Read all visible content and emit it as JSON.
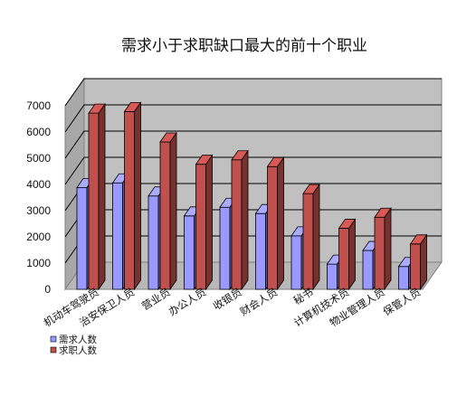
{
  "chart_data": {
    "type": "bar",
    "title": "需求小于求职缺口最大的前十个职业",
    "categories": [
      "机动车驾驶员",
      "治安保卫人员",
      "营业员",
      "办公人员",
      "收银员",
      "财会人员",
      "秘书",
      "计算机技术员",
      "物业管理人员",
      "保管人员"
    ],
    "series": [
      {
        "name": "需求人数",
        "color": "#9999ff",
        "values": [
          3880,
          4060,
          3560,
          2800,
          3130,
          2890,
          2040,
          960,
          1480,
          870
        ]
      },
      {
        "name": "求职人数",
        "color": "#c0504d",
        "values": [
          6720,
          6780,
          5620,
          4770,
          4940,
          4680,
          3650,
          2330,
          2750,
          1730
        ]
      }
    ],
    "ylim": [
      0,
      7000
    ],
    "yticks": [
      "0",
      "1000",
      "2000",
      "3000",
      "4000",
      "5000",
      "6000",
      "7000"
    ],
    "grid": true,
    "legend_position": "bottom-left"
  }
}
